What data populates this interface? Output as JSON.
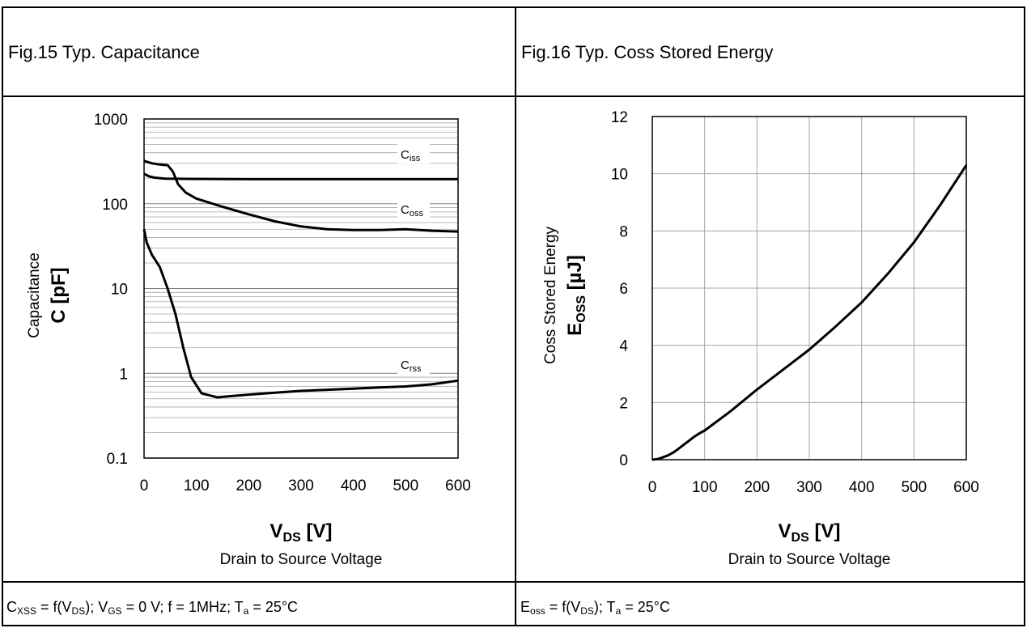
{
  "figures": {
    "left": {
      "title": "Fig.15  Typ. Capacitance",
      "condition": {
        "p1": "C",
        "s1": "XSS",
        "p2": " = f(V",
        "s2": "DS",
        "p3": "); V",
        "s3": "GS",
        "p4": " = 0 V; f = 1MHz; T",
        "s4": "a",
        "p5": " = 25°C"
      }
    },
    "right": {
      "title": "Fig.16  Typ. Coss Stored Energy",
      "condition": {
        "p1": "E",
        "s1": "oss",
        "p2": " = f(V",
        "s2": "DS",
        "p3": "); T",
        "s3": "a",
        "p4": " = 25°C"
      }
    }
  },
  "chart_data": [
    {
      "type": "line",
      "title": "Fig.15  Typ. Capacitance",
      "y_scale": "log",
      "xlim": [
        0,
        600
      ],
      "ylim": [
        0.1,
        1000
      ],
      "xticks": [
        "0",
        "100",
        "200",
        "300",
        "400",
        "500",
        "600"
      ],
      "yticks": [
        "0.1",
        "1",
        "10",
        "100",
        "1000"
      ],
      "xlabel_main": "V",
      "xlabel_sub": "DS",
      "xlabel_unit": " [V]",
      "xlabel_desc": "Drain to Source Voltage",
      "ylabel_desc": "Capacitance",
      "ylabel_main": "C [pF]",
      "grid": true,
      "series": [
        {
          "name": "C",
          "name_sub": "iss",
          "x": [
            0,
            10,
            20,
            40,
            60,
            100,
            200,
            300,
            400,
            500,
            600
          ],
          "y": [
            225,
            210,
            203,
            198,
            197,
            196,
            195,
            195,
            195,
            195,
            195
          ]
        },
        {
          "name": "C",
          "name_sub": "oss",
          "x": [
            0,
            15,
            30,
            45,
            55,
            65,
            80,
            100,
            150,
            200,
            250,
            300,
            350,
            400,
            450,
            500,
            550,
            600
          ],
          "y": [
            320,
            300,
            290,
            285,
            240,
            170,
            135,
            115,
            92,
            75,
            62,
            54,
            50,
            49,
            49,
            50,
            48,
            47
          ]
        },
        {
          "name": "C",
          "name_sub": "rss",
          "x": [
            0,
            5,
            15,
            30,
            45,
            60,
            75,
            90,
            110,
            140,
            170,
            200,
            250,
            300,
            350,
            400,
            450,
            500,
            550,
            600
          ],
          "y": [
            50,
            35,
            25,
            18,
            10,
            5,
            2,
            0.9,
            0.58,
            0.52,
            0.54,
            0.56,
            0.59,
            0.62,
            0.64,
            0.66,
            0.68,
            0.7,
            0.74,
            0.82
          ]
        }
      ]
    },
    {
      "type": "line",
      "title": "Fig.16  Typ. Coss Stored Energy",
      "y_scale": "linear",
      "xlim": [
        0,
        600
      ],
      "ylim": [
        0,
        12
      ],
      "xticks": [
        "0",
        "100",
        "200",
        "300",
        "400",
        "500",
        "600"
      ],
      "yticks": [
        "0",
        "2",
        "4",
        "6",
        "8",
        "10",
        "12"
      ],
      "xlabel_main": "V",
      "xlabel_sub": "DS",
      "xlabel_unit": " [V]",
      "xlabel_desc": "Drain to Source Voltage",
      "ylabel_desc": "Coss Stored Energy",
      "ylabel_main": "E",
      "ylabel_sub": "OSS",
      "ylabel_unit": " [µJ]",
      "grid": true,
      "series": [
        {
          "x": [
            0,
            10,
            20,
            30,
            40,
            50,
            60,
            70,
            80,
            90,
            100,
            150,
            200,
            250,
            300,
            350,
            400,
            450,
            500,
            550,
            600
          ],
          "y": [
            0,
            0.02,
            0.08,
            0.15,
            0.25,
            0.38,
            0.52,
            0.66,
            0.8,
            0.92,
            1.02,
            1.7,
            2.45,
            3.15,
            3.85,
            4.65,
            5.5,
            6.5,
            7.6,
            8.9,
            10.3
          ]
        }
      ]
    }
  ]
}
